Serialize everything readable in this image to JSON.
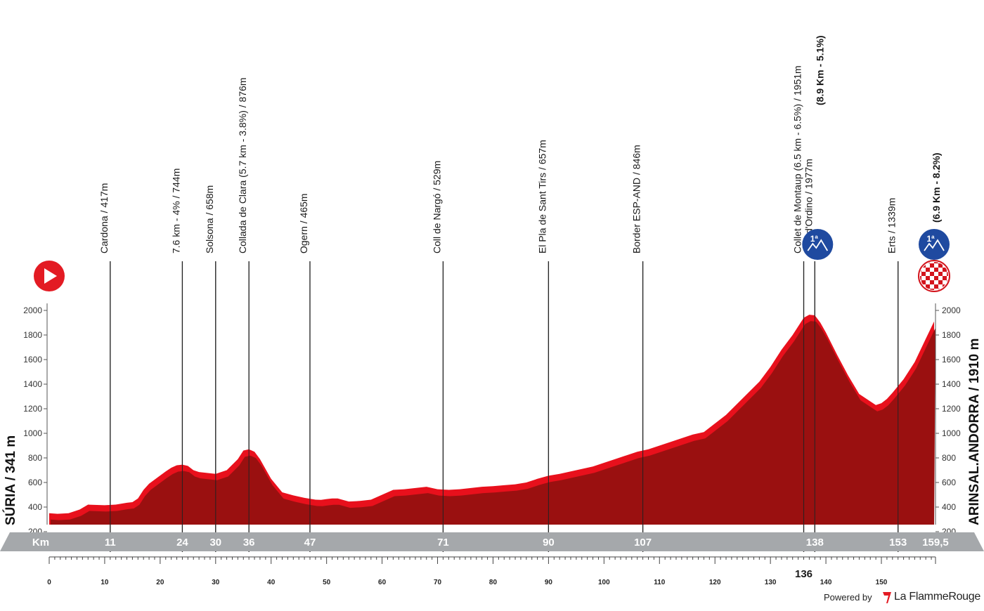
{
  "chart_data": {
    "type": "area",
    "title": "",
    "xlabel": "Km",
    "ylabel": "",
    "xlim": [
      0,
      159.5
    ],
    "ylim": [
      100,
      2000
    ],
    "y_ticks": [
      200,
      400,
      600,
      800,
      1000,
      1200,
      1400,
      1600,
      1800,
      2000
    ],
    "x_ticks": [
      0,
      10,
      20,
      30,
      40,
      50,
      60,
      70,
      80,
      90,
      100,
      110,
      120,
      130,
      140,
      150
    ],
    "x_tick_labels": [
      "0",
      "10",
      "20",
      "30",
      "40",
      "50",
      "60",
      "70",
      "80",
      "90",
      "100",
      "110",
      "120",
      "130",
      "140",
      "150"
    ],
    "grid": false,
    "start_label": "SÚRIA / 341 m",
    "finish_label": "ARINSAL.ANDORRA / 1910 m",
    "km_bar_label": "Km",
    "profile": {
      "x": [
        0,
        1.5,
        3.5,
        5.5,
        7,
        10,
        12,
        14,
        15,
        16,
        17,
        18,
        19.5,
        21,
        22,
        23,
        24,
        25,
        26,
        27,
        28,
        30,
        32,
        34,
        35,
        36,
        37,
        38,
        40,
        42,
        44,
        46,
        48,
        49,
        50,
        51,
        52,
        54,
        56,
        58,
        60,
        62,
        64,
        66,
        68,
        70,
        72,
        74,
        76,
        78,
        80,
        82,
        84,
        86,
        88,
        90,
        92,
        94,
        96,
        98,
        100,
        102,
        104,
        106,
        108,
        110,
        112,
        114,
        116,
        118,
        120,
        122,
        124,
        126,
        128,
        130,
        132,
        134,
        135,
        136,
        137,
        138,
        139,
        140,
        142,
        144,
        146,
        148,
        149,
        150,
        151,
        152,
        154,
        156,
        158,
        159.5
      ],
      "y": [
        350,
        345,
        350,
        380,
        420,
        415,
        420,
        435,
        440,
        470,
        540,
        590,
        640,
        690,
        720,
        740,
        745,
        735,
        700,
        685,
        680,
        670,
        700,
        790,
        860,
        870,
        850,
        790,
        630,
        520,
        495,
        475,
        460,
        458,
        465,
        470,
        470,
        445,
        450,
        460,
        500,
        540,
        545,
        555,
        565,
        545,
        540,
        545,
        555,
        565,
        570,
        578,
        585,
        600,
        630,
        655,
        670,
        690,
        710,
        730,
        760,
        790,
        820,
        850,
        870,
        900,
        930,
        960,
        990,
        1010,
        1080,
        1150,
        1240,
        1330,
        1420,
        1540,
        1680,
        1800,
        1870,
        1940,
        1965,
        1960,
        1900,
        1820,
        1640,
        1470,
        1320,
        1260,
        1230,
        1245,
        1280,
        1330,
        1440,
        1580,
        1770,
        1910
      ]
    },
    "waypoints": [
      {
        "km": 11,
        "label": "Cardona / 417m"
      },
      {
        "km": 24,
        "label": "7.6 km - 4% / 744m"
      },
      {
        "km": 30,
        "label": "Solsona / 658m"
      },
      {
        "km": 36,
        "label": "Collada de Clara (5.7 km - 3.8%) / 876m"
      },
      {
        "km": 47,
        "label": "Ogern / 465m"
      },
      {
        "km": 71,
        "label": "Coll de Nargó / 529m"
      },
      {
        "km": 90,
        "label": "El Pla de Sant Tirs / 657m"
      },
      {
        "km": 107,
        "label": "Border ESP-AND / 846m"
      },
      {
        "km": 136,
        "label": "Collet de Montaup (6.5 km - 6.5%) / 1951m"
      },
      {
        "km": 138,
        "label": "Coll d'Ordino / 1977m",
        "extra": "(8.9 Km - 5.1%)",
        "climb_category": "1ª"
      },
      {
        "km": 153,
        "label": "Erts / 1339m"
      },
      {
        "km": 159.5,
        "label": "",
        "extra": "(6.9 Km - 8.2%)",
        "climb_category": "1ª"
      }
    ],
    "km_bar_labels": [
      {
        "km": 11,
        "label": "11"
      },
      {
        "km": 24,
        "label": "24"
      },
      {
        "km": 30,
        "label": "30"
      },
      {
        "km": 36,
        "label": "36"
      },
      {
        "km": 47,
        "label": "47"
      },
      {
        "km": 71,
        "label": "71"
      },
      {
        "km": 90,
        "label": "90"
      },
      {
        "km": 107,
        "label": "107"
      },
      {
        "km": 138,
        "label": "138"
      },
      {
        "km": 153,
        "label": "153"
      },
      {
        "km": 159.5,
        "label": "159,5"
      }
    ],
    "km_below_label": {
      "km": 136,
      "label": "136"
    }
  },
  "colors": {
    "profile_fill": "#9a1010",
    "profile_edge": "#e8101c",
    "km_bar": "#a5a8ab",
    "start_marker": "#e31b23",
    "climb_badge": "#1f4aa0",
    "finish_check": "#d3141c"
  },
  "icons": {
    "start": "play-triangle-icon",
    "climb": "mountain-category-icon",
    "finish": "checkered-flag-icon"
  },
  "footer": {
    "powered_by": "Powered by",
    "brand": "La FlammeRouge"
  }
}
